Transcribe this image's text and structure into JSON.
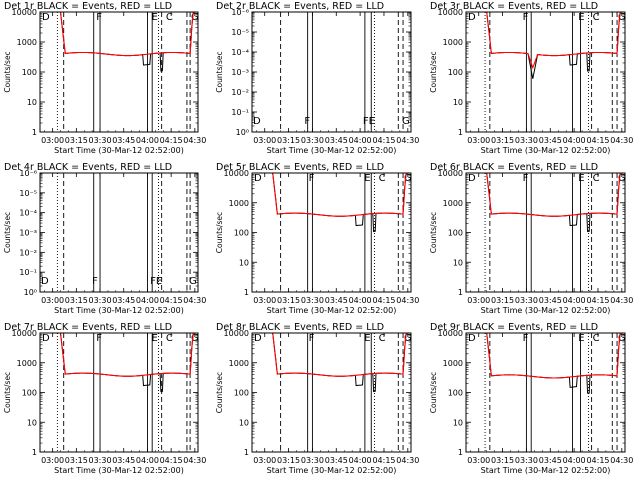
{
  "chart_data": [
    {
      "type": "line",
      "title": "Det 1r BLACK = Events, RED = LLD",
      "xlabel": "Start Time (30-Mar-12 02:52:00)",
      "ylabel": "Counts/sec",
      "scale": "log",
      "ylim": [
        1,
        10000
      ],
      "yticks": [
        "1",
        "10",
        "100",
        "1000",
        "10000"
      ],
      "xlim": [
        "02:52",
        "04:32"
      ],
      "xticks": [
        "03:00",
        "03:15",
        "03:30",
        "03:45",
        "04:00",
        "04:15",
        "04:30"
      ],
      "has_data": true,
      "plateau": 400,
      "dip": false,
      "letters": [
        "D",
        "F",
        "C",
        "E",
        "G"
      ],
      "vlines": [
        {
          "t": "03:03",
          "style": "dotted"
        },
        {
          "t": "03:07",
          "style": "dashed"
        },
        {
          "t": "03:26",
          "style": "solid"
        },
        {
          "t": "03:30",
          "style": "solid"
        },
        {
          "t": "04:00",
          "style": "solid"
        },
        {
          "t": "04:03",
          "style": "solid"
        },
        {
          "t": "04:07",
          "style": "dotted"
        },
        {
          "t": "04:09",
          "style": "dashed"
        },
        {
          "t": "04:25",
          "style": "dashed"
        },
        {
          "t": "04:27",
          "style": "dashed"
        }
      ]
    },
    {
      "type": "line",
      "title": "Det 2r BLACK = Events, RED = LLD",
      "xlabel": "Start Time (30-Mar-12 02:52:00)",
      "ylabel": "Counts/sec",
      "scale": "log",
      "ylim": [
        1,
        1e-06
      ],
      "yticks": [
        "10⁰",
        "10⁻¹",
        "10⁻²",
        "10⁻³",
        "10⁻⁴",
        "10⁻⁵",
        "10⁻⁶"
      ],
      "xlim": [
        "02:52",
        "04:32"
      ],
      "xticks": [
        "03:00",
        "03:15",
        "03:30",
        "03:45",
        "04:00",
        "04:15",
        "04:30"
      ],
      "has_data": false,
      "letters": [
        "D",
        "F",
        "FE",
        "G"
      ],
      "vlines": [
        {
          "t": "03:10",
          "style": "dashed"
        },
        {
          "t": "03:27",
          "style": "solid"
        },
        {
          "t": "03:30",
          "style": "solid"
        },
        {
          "t": "04:03",
          "style": "solid"
        },
        {
          "t": "04:07",
          "style": "solid"
        },
        {
          "t": "04:09",
          "style": "dotted"
        },
        {
          "t": "04:24",
          "style": "dashed"
        },
        {
          "t": "04:27",
          "style": "dashed"
        }
      ]
    },
    {
      "type": "line",
      "title": "Det 3r BLACK = Events, RED = LLD",
      "xlabel": "Start Time (30-Mar-12 02:52:00)",
      "ylabel": "Counts/sec",
      "scale": "log",
      "ylim": [
        1,
        10000
      ],
      "yticks": [
        "1",
        "10",
        "100",
        "1000",
        "10000"
      ],
      "xlim": [
        "02:52",
        "04:32"
      ],
      "xticks": [
        "03:00",
        "03:15",
        "03:30",
        "03:45",
        "04:00",
        "04:15",
        "04:30"
      ],
      "has_data": true,
      "plateau": 400,
      "dip": true,
      "letters": [
        "D",
        "F",
        "C",
        "E",
        "G"
      ],
      "vlines": [
        {
          "t": "03:04",
          "style": "dotted"
        },
        {
          "t": "03:07",
          "style": "dashed"
        },
        {
          "t": "03:30",
          "style": "solid"
        },
        {
          "t": "03:33",
          "style": "solid"
        },
        {
          "t": "03:59",
          "style": "solid"
        },
        {
          "t": "04:04",
          "style": "solid"
        },
        {
          "t": "04:09",
          "style": "dotted"
        },
        {
          "t": "04:11",
          "style": "dashed"
        },
        {
          "t": "04:24",
          "style": "dashed"
        },
        {
          "t": "04:27",
          "style": "dashed"
        }
      ]
    },
    {
      "type": "line",
      "title": "Det 4r BLACK = Events, RED = LLD",
      "xlabel": "Start Time (30-Mar-12 02:52:00)",
      "ylabel": "Counts/sec",
      "scale": "log",
      "ylim": [
        1,
        1e-06
      ],
      "yticks": [
        "10⁰",
        "10⁻¹",
        "10⁻²",
        "10⁻³",
        "10⁻⁴",
        "10⁻⁵",
        "10⁻⁶"
      ],
      "xlim": [
        "02:52",
        "04:32"
      ],
      "xticks": [
        "03:00",
        "03:15",
        "03:30",
        "03:45",
        "04:00",
        "04:15",
        "04:30"
      ],
      "has_data": false,
      "letters": [
        "D",
        "F",
        "FE",
        "G"
      ],
      "vlines": [
        {
          "t": "03:03",
          "style": "dotted"
        },
        {
          "t": "03:07",
          "style": "dashed"
        },
        {
          "t": "03:26",
          "style": "solid"
        },
        {
          "t": "03:30",
          "style": "solid"
        },
        {
          "t": "04:00",
          "style": "solid"
        },
        {
          "t": "04:03",
          "style": "solid"
        },
        {
          "t": "04:07",
          "style": "dotted"
        },
        {
          "t": "04:09",
          "style": "dashed"
        },
        {
          "t": "04:25",
          "style": "dashed"
        },
        {
          "t": "04:27",
          "style": "dashed"
        }
      ]
    },
    {
      "type": "line",
      "title": "Det 5r BLACK = Events, RED = LLD",
      "xlabel": "Start Time (30-Mar-12 02:52:00)",
      "ylabel": "Counts/sec",
      "scale": "log",
      "ylim": [
        1,
        10000
      ],
      "yticks": [
        "1",
        "10",
        "100",
        "1000",
        "10000"
      ],
      "xlim": [
        "02:52",
        "04:32"
      ],
      "xticks": [
        "03:00",
        "03:15",
        "03:30",
        "03:45",
        "04:00",
        "04:15",
        "04:30"
      ],
      "has_data": true,
      "plateau": 400,
      "dip": false,
      "letters": [
        "D",
        "F",
        "C",
        "E",
        "G"
      ],
      "vlines": [
        {
          "t": "03:10",
          "style": "dashed"
        },
        {
          "t": "03:27",
          "style": "solid"
        },
        {
          "t": "03:30",
          "style": "solid"
        },
        {
          "t": "04:03",
          "style": "solid"
        },
        {
          "t": "04:07",
          "style": "solid"
        },
        {
          "t": "04:09",
          "style": "dotted"
        },
        {
          "t": "04:24",
          "style": "dashed"
        },
        {
          "t": "04:27",
          "style": "dashed"
        }
      ]
    },
    {
      "type": "line",
      "title": "Det 6r BLACK = Events, RED = LLD",
      "xlabel": "Start Time (30-Mar-12 02:52:00)",
      "ylabel": "Counts/sec",
      "scale": "log",
      "ylim": [
        1,
        10000
      ],
      "yticks": [
        "1",
        "10",
        "100",
        "1000",
        "10000"
      ],
      "xlim": [
        "02:52",
        "04:32"
      ],
      "xticks": [
        "03:00",
        "03:15",
        "03:30",
        "03:45",
        "04:00",
        "04:15",
        "04:30"
      ],
      "has_data": true,
      "plateau": 400,
      "dip": false,
      "letters": [
        "D",
        "F",
        "C",
        "E",
        "G"
      ],
      "vlines": [
        {
          "t": "03:04",
          "style": "dotted"
        },
        {
          "t": "03:07",
          "style": "dashed"
        },
        {
          "t": "03:30",
          "style": "solid"
        },
        {
          "t": "03:33",
          "style": "solid"
        },
        {
          "t": "03:59",
          "style": "solid"
        },
        {
          "t": "04:04",
          "style": "solid"
        },
        {
          "t": "04:09",
          "style": "dotted"
        },
        {
          "t": "04:11",
          "style": "dashed"
        },
        {
          "t": "04:24",
          "style": "dashed"
        },
        {
          "t": "04:27",
          "style": "dashed"
        }
      ]
    },
    {
      "type": "line",
      "title": "Det 7r BLACK = Events, RED = LLD",
      "xlabel": "Start Time (30-Mar-12 02:52:00)",
      "ylabel": "Counts/sec",
      "scale": "log",
      "ylim": [
        1,
        10000
      ],
      "yticks": [
        "1",
        "10",
        "100",
        "1000",
        "10000"
      ],
      "xlim": [
        "02:52",
        "04:32"
      ],
      "xticks": [
        "03:00",
        "03:15",
        "03:30",
        "03:45",
        "04:00",
        "04:15",
        "04:30"
      ],
      "has_data": true,
      "plateau": 400,
      "dip": false,
      "letters": [
        "D",
        "F",
        "C",
        "E",
        "G"
      ],
      "vlines": [
        {
          "t": "03:03",
          "style": "dotted"
        },
        {
          "t": "03:07",
          "style": "dashed"
        },
        {
          "t": "03:26",
          "style": "solid"
        },
        {
          "t": "03:30",
          "style": "solid"
        },
        {
          "t": "04:00",
          "style": "solid"
        },
        {
          "t": "04:03",
          "style": "solid"
        },
        {
          "t": "04:07",
          "style": "dotted"
        },
        {
          "t": "04:09",
          "style": "dashed"
        },
        {
          "t": "04:25",
          "style": "dashed"
        },
        {
          "t": "04:27",
          "style": "dashed"
        }
      ]
    },
    {
      "type": "line",
      "title": "Det 8r BLACK = Events, RED = LLD",
      "xlabel": "Start Time (30-Mar-12 02:52:00)",
      "ylabel": "Counts/sec",
      "scale": "log",
      "ylim": [
        1,
        10000
      ],
      "yticks": [
        "1",
        "10",
        "100",
        "1000",
        "10000"
      ],
      "xlim": [
        "02:52",
        "04:32"
      ],
      "xticks": [
        "03:00",
        "03:15",
        "03:30",
        "03:45",
        "04:00",
        "04:15",
        "04:30"
      ],
      "has_data": true,
      "plateau": 400,
      "dip": false,
      "letters": [
        "D",
        "F",
        "C",
        "E",
        "G"
      ],
      "vlines": [
        {
          "t": "03:10",
          "style": "dashed"
        },
        {
          "t": "03:27",
          "style": "solid"
        },
        {
          "t": "03:30",
          "style": "solid"
        },
        {
          "t": "04:03",
          "style": "solid"
        },
        {
          "t": "04:07",
          "style": "solid"
        },
        {
          "t": "04:09",
          "style": "dotted"
        },
        {
          "t": "04:24",
          "style": "dashed"
        },
        {
          "t": "04:27",
          "style": "dashed"
        }
      ]
    },
    {
      "type": "line",
      "title": "Det 9r BLACK = Events, RED = LLD",
      "xlabel": "Start Time (30-Mar-12 02:52:00)",
      "ylabel": "Counts/sec",
      "scale": "log",
      "ylim": [
        1,
        10000
      ],
      "yticks": [
        "1",
        "10",
        "100",
        "1000",
        "10000"
      ],
      "xlim": [
        "02:52",
        "04:32"
      ],
      "xticks": [
        "03:00",
        "03:15",
        "03:30",
        "03:45",
        "04:00",
        "04:15",
        "04:30"
      ],
      "has_data": true,
      "plateau": 350,
      "dip": false,
      "letters": [
        "D",
        "F",
        "C",
        "E",
        "G"
      ],
      "vlines": [
        {
          "t": "03:04",
          "style": "dotted"
        },
        {
          "t": "03:07",
          "style": "dashed"
        },
        {
          "t": "03:30",
          "style": "solid"
        },
        {
          "t": "03:33",
          "style": "solid"
        },
        {
          "t": "03:59",
          "style": "solid"
        },
        {
          "t": "04:04",
          "style": "solid"
        },
        {
          "t": "04:09",
          "style": "dotted"
        },
        {
          "t": "04:11",
          "style": "dashed"
        },
        {
          "t": "04:24",
          "style": "dashed"
        },
        {
          "t": "04:27",
          "style": "dashed"
        }
      ]
    }
  ],
  "colors": {
    "events": "#000000",
    "lld": "#ff0000",
    "frame": "#000000"
  }
}
